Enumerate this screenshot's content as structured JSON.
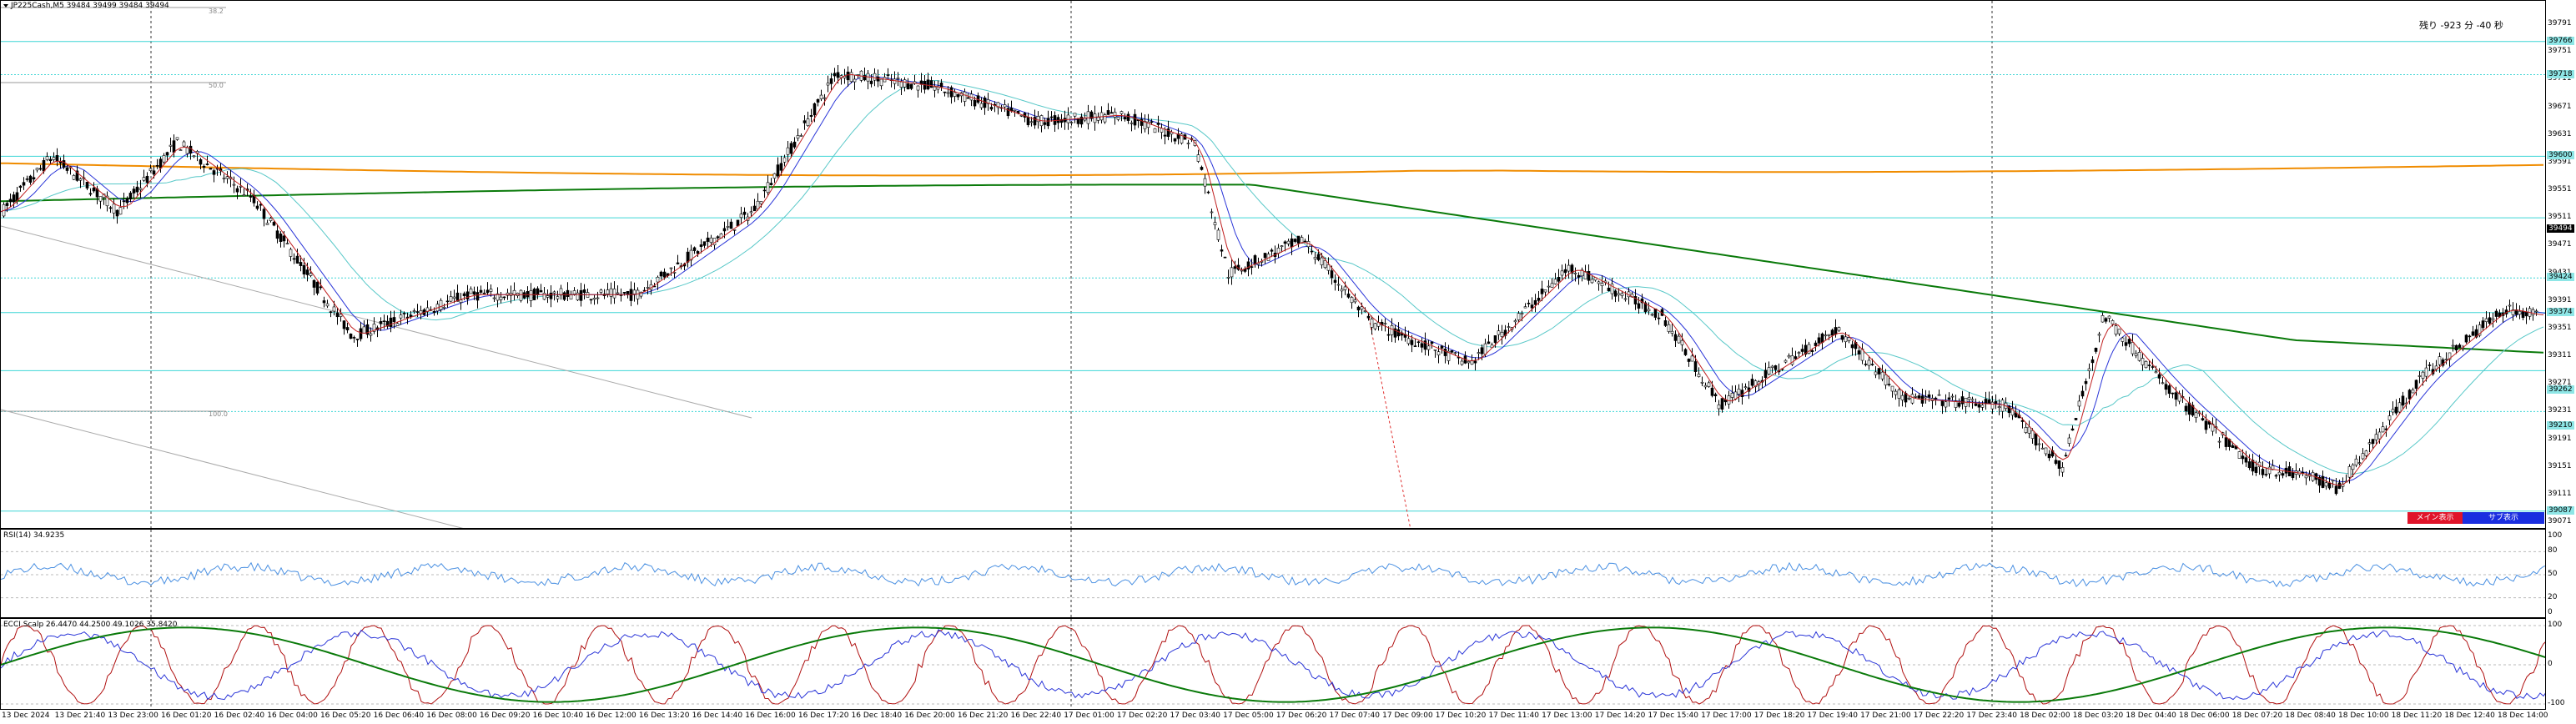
{
  "header": {
    "symbol_line": "JP225Cash,M5  39484 39499 39484 39494",
    "countdown": "残り -923 分 -40 秒"
  },
  "fib_labels": [
    "38.2",
    "50.0",
    "100.0"
  ],
  "buttons": {
    "main": "メイン表示",
    "sub": "サブ表示"
  },
  "rsi": {
    "title": "RSI(14) 34.9235",
    "axis_labels": [
      "100",
      "80",
      "50",
      "20",
      "0"
    ]
  },
  "cci": {
    "title": "ECCI Scalp 26.4470 44.2500 49.1026 35.8420",
    "axis_labels": [
      "100",
      "0",
      "-100"
    ]
  },
  "price_axis": [
    "39791",
    "39751",
    "39711",
    "39671",
    "39631",
    "39591",
    "39551",
    "39511",
    "39471",
    "39431",
    "39391",
    "39351",
    "39311",
    "39271",
    "39231",
    "39191",
    "39151",
    "39111",
    "39071"
  ],
  "price_tags": [
    "39766",
    "39718",
    "39600",
    "39494",
    "39424",
    "39374",
    "39262",
    "39210",
    "39087"
  ],
  "time_axis": [
    "13 Dec 2024",
    "13 Dec 21:40",
    "13 Dec 23:00",
    "16 Dec 01:20",
    "16 Dec 02:40",
    "16 Dec 04:00",
    "16 Dec 05:20",
    "16 Dec 06:40",
    "16 Dec 08:00",
    "16 Dec 09:20",
    "16 Dec 10:40",
    "16 Dec 12:00",
    "16 Dec 13:20",
    "16 Dec 14:40",
    "16 Dec 16:00",
    "16 Dec 17:20",
    "16 Dec 18:40",
    "16 Dec 20:00",
    "16 Dec 21:20",
    "16 Dec 22:40",
    "17 Dec 01:00",
    "17 Dec 02:20",
    "17 Dec 03:40",
    "17 Dec 05:00",
    "17 Dec 06:20",
    "17 Dec 07:40",
    "17 Dec 09:00",
    "17 Dec 10:20",
    "17 Dec 11:40",
    "17 Dec 13:00",
    "17 Dec 14:20",
    "17 Dec 15:40",
    "17 Dec 17:00",
    "17 Dec 18:20",
    "17 Dec 19:40",
    "17 Dec 21:00",
    "17 Dec 22:20",
    "17 Dec 23:40",
    "18 Dec 02:00",
    "18 Dec 03:20",
    "18 Dec 04:40",
    "18 Dec 06:00",
    "18 Dec 07:20",
    "18 Dec 08:40",
    "18 Dec 10:00",
    "18 Dec 11:20",
    "18 Dec 12:40",
    "18 Dec 14:00"
  ],
  "colors": {
    "bull_candle": "#000000",
    "ma_fast": "#2a35d8",
    "ma_mid": "#58c8c8",
    "ma_long_green": "#0a7a0a",
    "ma_long_orange": "#f08c00",
    "level_line": "#3fd6d6",
    "rsi_line": "#4a90e2",
    "cci_red": "#b01010",
    "cci_blue": "#2a35d8",
    "cci_green": "#0a7a0a"
  }
}
